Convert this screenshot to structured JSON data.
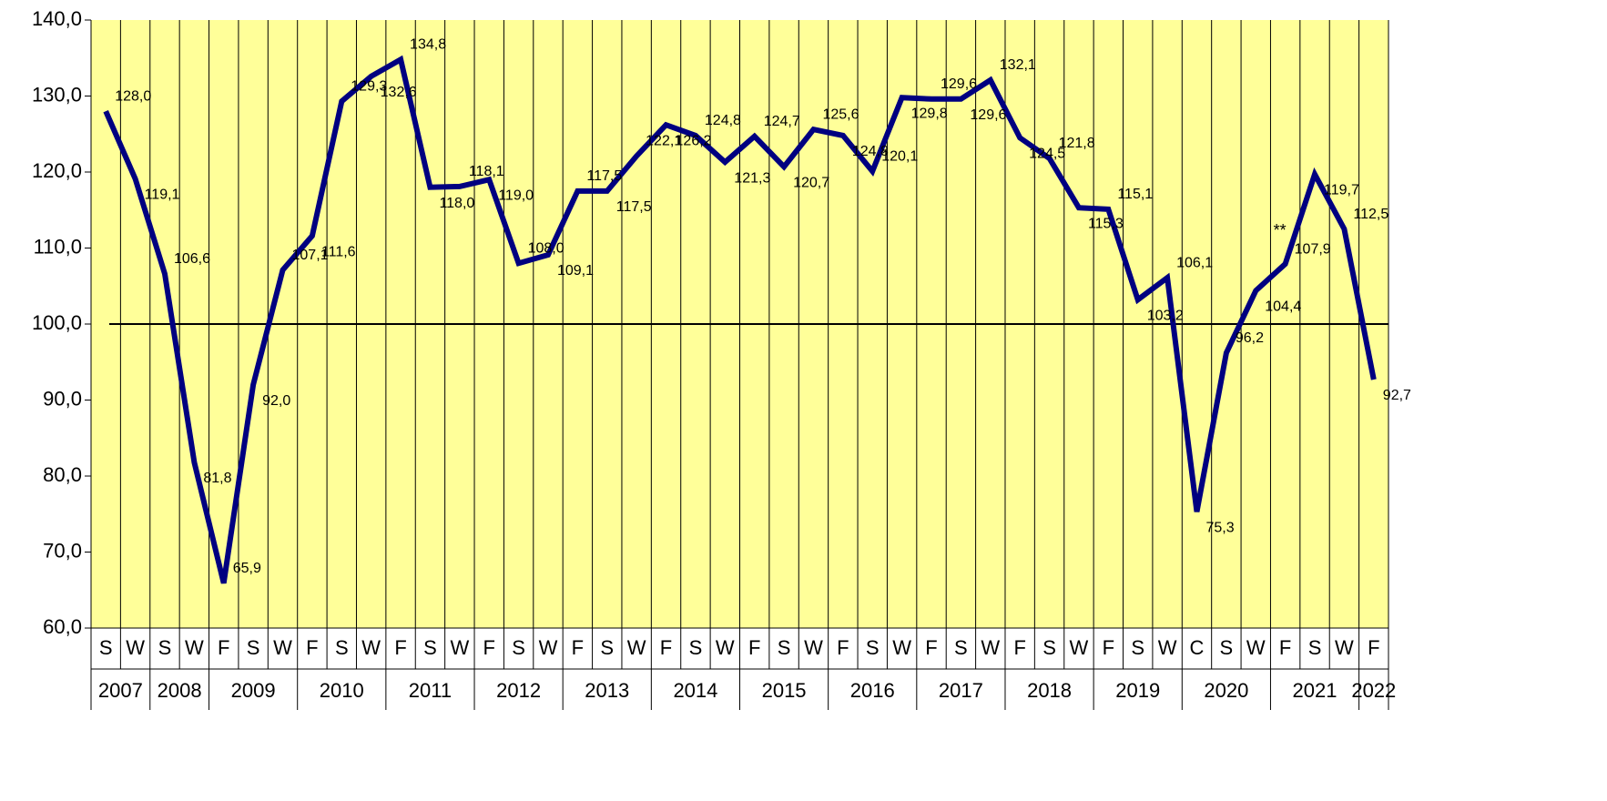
{
  "chart_data": {
    "type": "line",
    "categories": [
      "S",
      "W",
      "S",
      "W",
      "F",
      "S",
      "W",
      "F",
      "S",
      "W",
      "F",
      "S",
      "W",
      "F",
      "S",
      "W",
      "F",
      "S",
      "W",
      "F",
      "S",
      "W",
      "F",
      "S",
      "W",
      "F",
      "S",
      "W",
      "F",
      "S",
      "W",
      "F",
      "S",
      "W",
      "F",
      "S",
      "W",
      "C",
      "S",
      "W",
      "F",
      "S",
      "W",
      "F"
    ],
    "years": [
      "2007",
      null,
      "2008",
      null,
      "2009",
      null,
      null,
      "2010",
      null,
      null,
      "2011",
      null,
      null,
      "2012",
      null,
      null,
      "2013",
      null,
      null,
      "2014",
      null,
      null,
      "2015",
      null,
      null,
      "2016",
      null,
      null,
      "2017",
      null,
      null,
      "2018",
      null,
      null,
      "2019",
      null,
      null,
      "2020",
      null,
      null,
      "2021",
      null,
      null,
      "2022"
    ],
    "series": [
      {
        "name": null,
        "color": "#000080",
        "values": [
          128.0,
          119.1,
          106.6,
          81.8,
          65.9,
          92.0,
          107.1,
          111.6,
          129.3,
          132.6,
          134.8,
          118.0,
          118.1,
          119.0,
          108.0,
          109.1,
          117.5,
          117.5,
          122.1,
          126.2,
          124.8,
          121.3,
          124.7,
          120.7,
          125.6,
          124.8,
          120.1,
          129.8,
          129.6,
          129.6,
          132.1,
          124.5,
          121.8,
          115.3,
          115.1,
          103.2,
          106.1,
          75.3,
          96.2,
          104.4,
          107.9,
          119.7,
          112.5,
          92.7
        ],
        "value_labels": [
          "128,0",
          "119,1",
          "106,6",
          "81,8",
          "65,9",
          "92,0",
          "107,1",
          "111,6",
          "129,3",
          "132,6",
          "134,8",
          "118,0",
          "118,1",
          "119,0",
          "108,0",
          "109,1",
          "117,5",
          "117,5",
          "122,1",
          "126,2",
          "124,8",
          "121,3",
          "124,7",
          "120,7",
          "125,6",
          "124,8",
          "120,1",
          "129,8",
          "129,6",
          "129,6",
          "132,1",
          "124,5",
          "121,8",
          "115,3",
          "115,1",
          "103,2",
          "106,1",
          "75,3",
          "96,2",
          "104,4",
          "107,9",
          "119,7",
          "112,5",
          "92,7"
        ]
      }
    ],
    "annotation": "**",
    "reference_line": 100,
    "ylim": [
      60,
      140
    ],
    "yticks": [
      {
        "value": 60,
        "label": "60,0"
      },
      {
        "value": 70,
        "label": "70,0"
      },
      {
        "value": 80,
        "label": "80,0"
      },
      {
        "value": 90,
        "label": "90,0"
      },
      {
        "value": 100,
        "label": "100,0"
      },
      {
        "value": 110,
        "label": "110,0"
      },
      {
        "value": 120,
        "label": "120,0"
      },
      {
        "value": 130,
        "label": "130,0"
      },
      {
        "value": 140,
        "label": "140,0"
      }
    ],
    "grid": true,
    "background": "#ffff99"
  }
}
